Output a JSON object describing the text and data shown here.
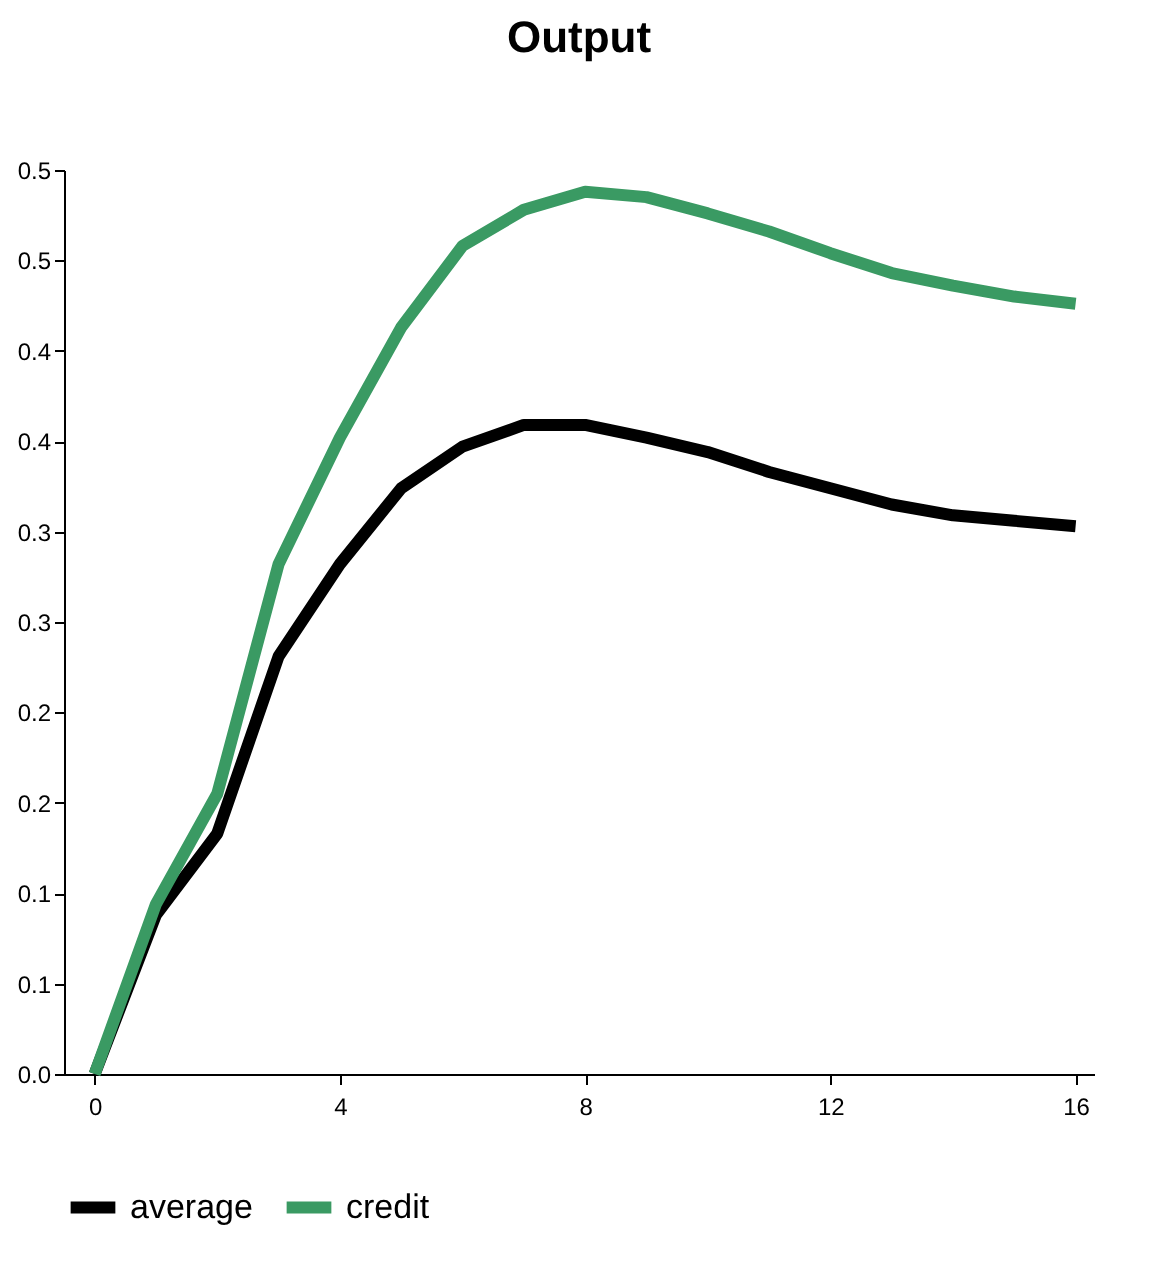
{
  "chart_data": {
    "type": "line",
    "title": "Output",
    "x": [
      0,
      1,
      2,
      3,
      4,
      5,
      6,
      7,
      8,
      9,
      10,
      11,
      12,
      13,
      14,
      15,
      16
    ],
    "series": [
      {
        "name": "average",
        "color": "#000000",
        "values": [
          0,
          0.088,
          0.133,
          0.231,
          0.282,
          0.324,
          0.347,
          0.359,
          0.359,
          0.352,
          0.344,
          0.333,
          0.324,
          0.315,
          0.309,
          0.306,
          0.303
        ]
      },
      {
        "name": "credit",
        "color": "#3a9a63",
        "values": [
          0,
          0.094,
          0.155,
          0.282,
          0.352,
          0.413,
          0.458,
          0.478,
          0.488,
          0.485,
          0.476,
          0.466,
          0.454,
          0.443,
          0.436,
          0.43,
          0.426
        ]
      }
    ],
    "xlim": [
      -0.5,
      16.3
    ],
    "xticks": [
      0,
      4,
      8,
      12,
      16
    ],
    "ylim": [
      0,
      0.5
    ],
    "yticks": [
      {
        "value": 0,
        "label": "0.0"
      },
      {
        "value": 0.05,
        "label": "0.1"
      },
      {
        "value": 0.1,
        "label": "0.1"
      },
      {
        "value": 0.15,
        "label": "0.2"
      },
      {
        "value": 0.2,
        "label": "0.2"
      },
      {
        "value": 0.25,
        "label": "0.3"
      },
      {
        "value": 0.3,
        "label": "0.3"
      },
      {
        "value": 0.35,
        "label": "0.4"
      },
      {
        "value": 0.4,
        "label": "0.4"
      },
      {
        "value": 0.45,
        "label": "0.5"
      },
      {
        "value": 0.5,
        "label": "0.5"
      }
    ],
    "grid": false,
    "legend": "bottom",
    "line_style": "solid"
  }
}
